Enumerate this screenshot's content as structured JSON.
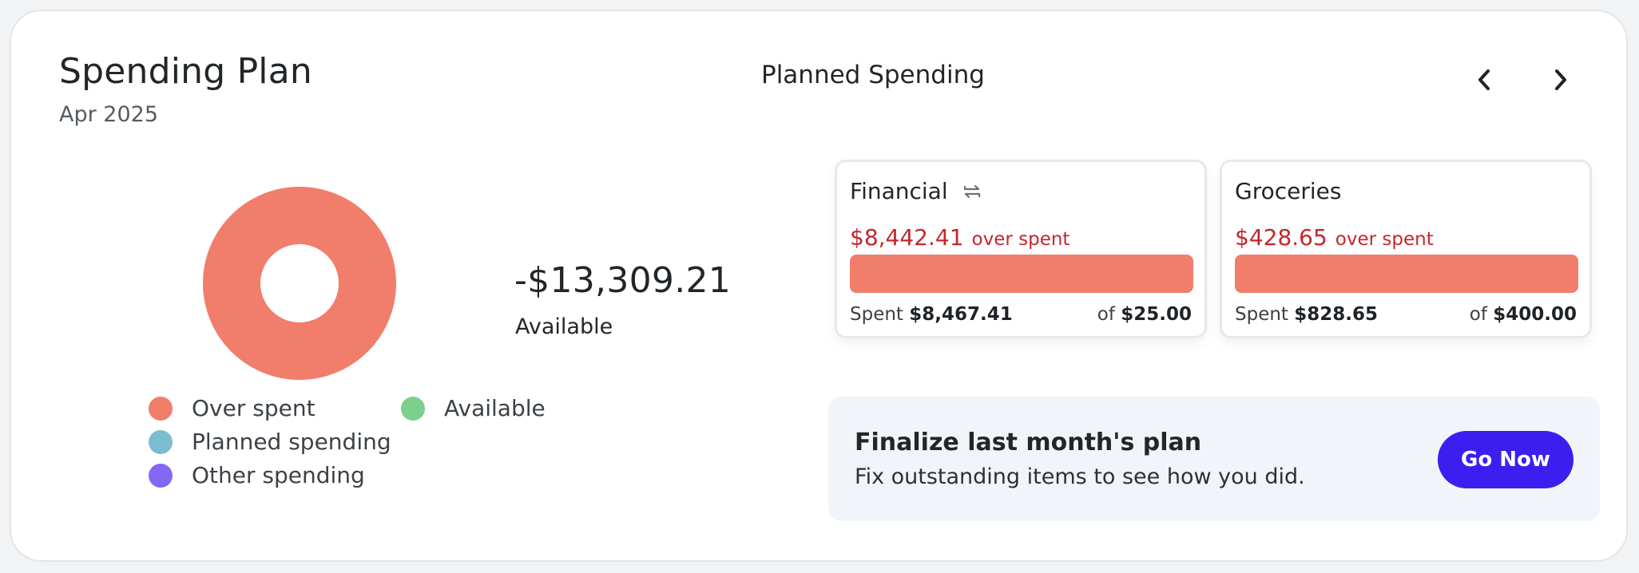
{
  "header": {
    "title": "Spending Plan",
    "subtitle": "Apr 2025",
    "section_title": "Planned Spending",
    "prev_icon": "chevron-left-icon",
    "next_icon": "chevron-right-icon"
  },
  "summary": {
    "amount": "-$13,309.21",
    "label": "Available"
  },
  "chart_data": {
    "type": "pie",
    "style": "donut",
    "slices": [
      {
        "name": "Over spent",
        "value": 1.0,
        "color": "#f07e6b"
      },
      {
        "name": "Planned spending",
        "value": 0,
        "color": "#7cbcd1"
      },
      {
        "name": "Other spending",
        "value": 0,
        "color": "#8467f5"
      },
      {
        "name": "Available",
        "value": 0,
        "color": "#7dcf8e"
      }
    ]
  },
  "legend": [
    {
      "label": "Over spent",
      "color": "#f07e6b"
    },
    {
      "label": "Planned spending",
      "color": "#7cbcd1"
    },
    {
      "label": "Other spending",
      "color": "#8467f5"
    },
    {
      "label": "Available",
      "color": "#7dcf8e"
    }
  ],
  "plans": [
    {
      "name": "Financial",
      "icon": "repeat-icon",
      "over_amount": "$8,442.41",
      "over_text": "over spent",
      "spent_label": "Spent",
      "spent_value": "$8,467.41",
      "of_label": "of",
      "of_value": "$25.00",
      "progress": 1.0,
      "bar_color": "#f07e6b"
    },
    {
      "name": "Groceries",
      "icon": "",
      "over_amount": "$428.65",
      "over_text": "over spent",
      "spent_label": "Spent",
      "spent_value": "$828.65",
      "of_label": "of",
      "of_value": "$400.00",
      "progress": 1.0,
      "bar_color": "#f07e6b"
    }
  ],
  "finalize": {
    "title": "Finalize last month's plan",
    "description": "Fix outstanding items to see how you did.",
    "button_label": "Go Now",
    "button_color": "#3c1ff0"
  }
}
